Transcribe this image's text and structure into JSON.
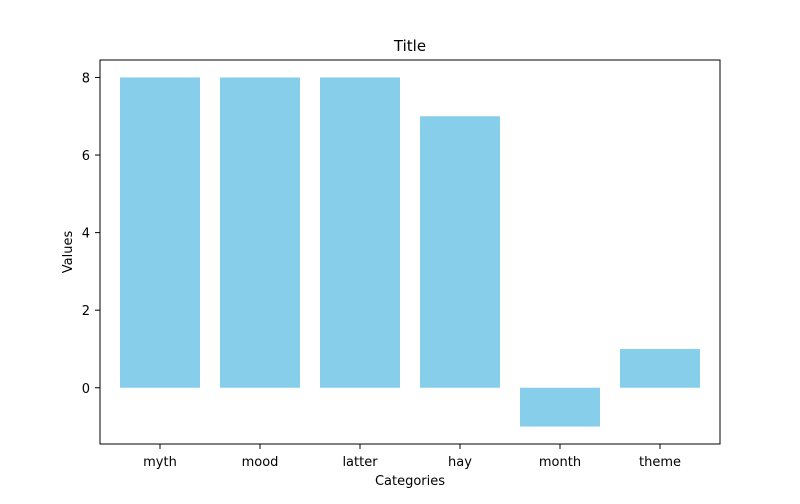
{
  "chart_data": {
    "type": "bar",
    "title": "Title",
    "xlabel": "Categories",
    "ylabel": "Values",
    "categories": [
      "myth",
      "mood",
      "latter",
      "hay",
      "month",
      "theme"
    ],
    "values": [
      8,
      8,
      8,
      7,
      -1,
      1
    ],
    "ylim": [
      -1.45,
      8.45
    ],
    "yticks": [
      0,
      2,
      4,
      6,
      8
    ],
    "bar_color": "#87ceeb",
    "grid": false,
    "legend": "none"
  }
}
